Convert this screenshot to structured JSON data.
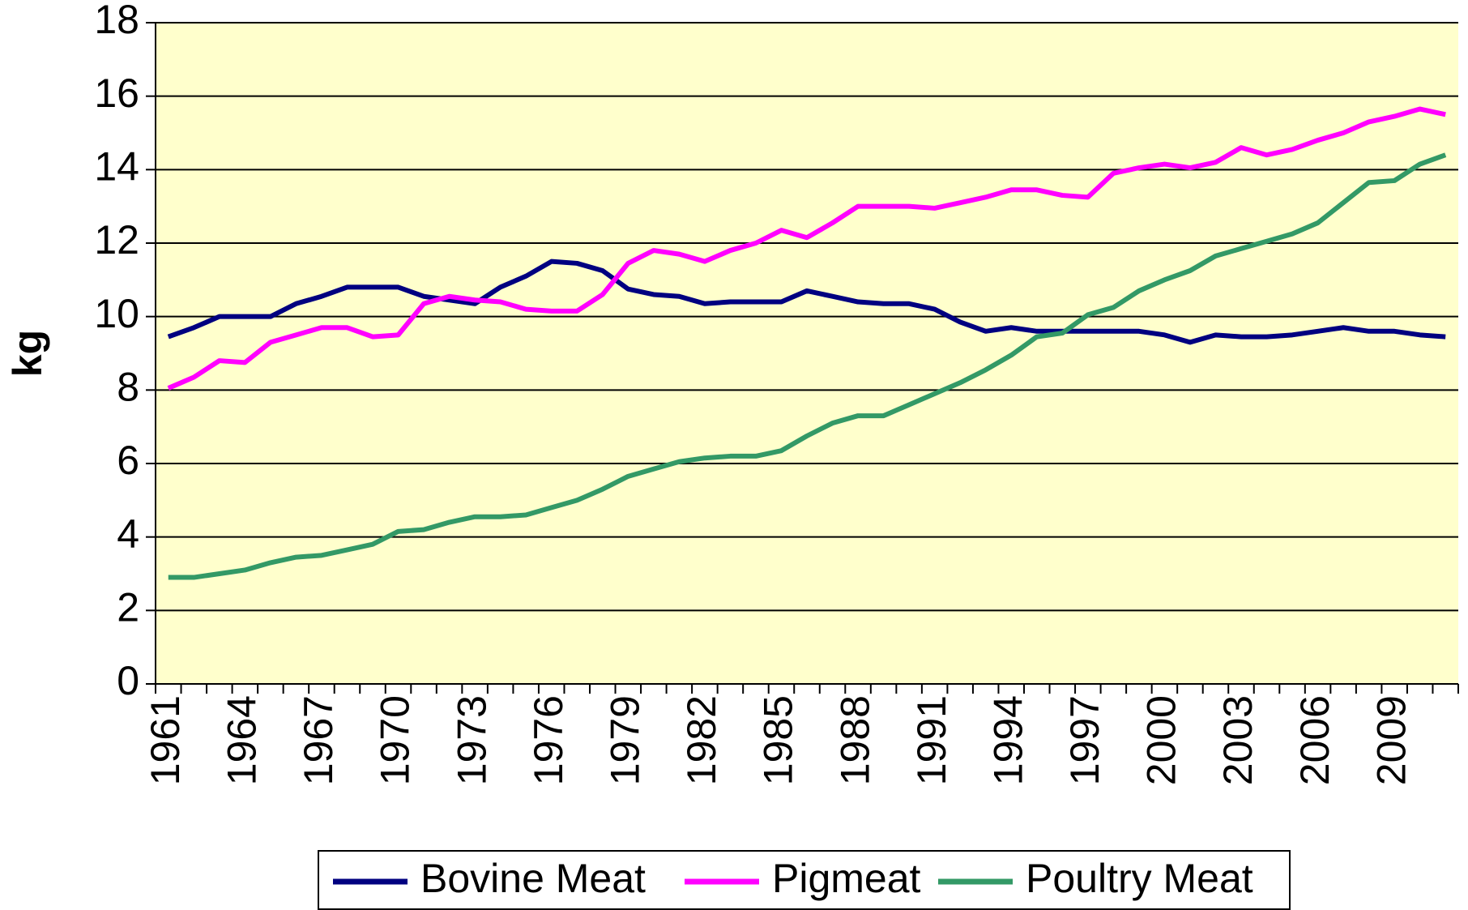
{
  "chart_data": {
    "type": "line",
    "y_label": "kg",
    "categories": [
      "1961",
      null,
      null,
      "1964",
      null,
      null,
      "1967",
      null,
      null,
      "1970",
      null,
      null,
      "1973",
      null,
      null,
      "1976",
      null,
      null,
      "1979",
      null,
      null,
      "1982",
      null,
      null,
      "1985",
      null,
      null,
      "1988",
      null,
      null,
      "1991",
      null,
      null,
      "1994",
      null,
      null,
      "1997",
      null,
      null,
      "2000",
      null,
      null,
      "2003",
      null,
      null,
      "2006",
      null,
      null,
      "2009",
      null,
      null
    ],
    "series": [
      {
        "name": "Bovine Meat",
        "color": "#000080",
        "values": [
          9.45,
          9.7,
          10.0,
          10.0,
          10.0,
          10.35,
          10.55,
          10.8,
          10.8,
          10.8,
          10.55,
          10.45,
          10.35,
          10.8,
          11.1,
          11.5,
          11.45,
          11.25,
          10.75,
          10.6,
          10.55,
          10.35,
          10.4,
          10.4,
          10.4,
          10.7,
          10.55,
          10.4,
          10.35,
          10.35,
          10.2,
          9.85,
          9.6,
          9.7,
          9.6,
          9.6,
          9.6,
          9.6,
          9.6,
          9.5,
          9.3,
          9.5,
          9.45,
          9.45,
          9.5,
          9.6,
          9.7,
          9.6,
          9.6,
          9.5,
          9.45
        ]
      },
      {
        "name": "Pigmeat",
        "color": "#ff00ff",
        "values": [
          8.05,
          8.35,
          8.8,
          8.75,
          9.3,
          9.5,
          9.7,
          9.7,
          9.45,
          9.5,
          10.35,
          10.55,
          10.45,
          10.4,
          10.2,
          10.15,
          10.15,
          10.6,
          11.45,
          11.8,
          11.7,
          11.5,
          11.8,
          12.0,
          12.35,
          12.15,
          12.55,
          13.0,
          13.0,
          13.0,
          12.95,
          13.1,
          13.25,
          13.45,
          13.45,
          13.3,
          13.25,
          13.9,
          14.05,
          14.15,
          14.05,
          14.2,
          14.6,
          14.4,
          14.55,
          14.8,
          15.0,
          15.3,
          15.45,
          15.65,
          15.5
        ]
      },
      {
        "name": "Poultry Meat",
        "color": "#339966",
        "values": [
          2.9,
          2.9,
          3.0,
          3.1,
          3.3,
          3.45,
          3.5,
          3.65,
          3.8,
          4.15,
          4.2,
          4.4,
          4.55,
          4.55,
          4.6,
          4.8,
          5.0,
          5.3,
          5.65,
          5.85,
          6.05,
          6.15,
          6.2,
          6.2,
          6.35,
          6.75,
          7.1,
          7.3,
          7.3,
          7.6,
          7.9,
          8.2,
          8.55,
          8.95,
          9.45,
          9.55,
          10.05,
          10.25,
          10.7,
          11.0,
          11.25,
          11.65,
          11.85,
          12.05,
          12.25,
          12.55,
          13.1,
          13.65,
          13.7,
          14.15,
          14.4
        ]
      }
    ],
    "ylim": [
      0,
      18
    ],
    "yticks": [
      0,
      2,
      4,
      6,
      8,
      10,
      12,
      14,
      16,
      18
    ],
    "grid": true,
    "plot_background": "#ffffcc",
    "legend": "bottom"
  }
}
